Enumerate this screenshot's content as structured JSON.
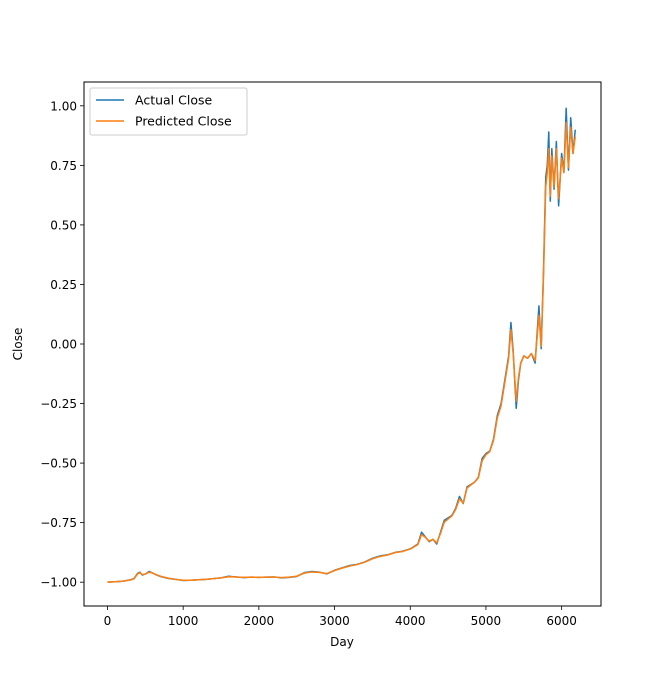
{
  "chart_data": {
    "type": "line",
    "title": "",
    "xlabel": "Day",
    "ylabel": "Close",
    "xlim": [
      -310,
      6520
    ],
    "ylim": [
      -1.1,
      1.1
    ],
    "xticks": [
      0,
      1000,
      2000,
      3000,
      4000,
      5000,
      6000
    ],
    "xtick_labels": [
      "0",
      "1000",
      "2000",
      "3000",
      "4000",
      "5000",
      "6000"
    ],
    "yticks": [
      1.0,
      0.75,
      0.5,
      0.25,
      0.0,
      -0.25,
      -0.5,
      -0.75,
      -1.0
    ],
    "ytick_labels": [
      "1.00",
      "0.75",
      "0.50",
      "0.25",
      "0.00",
      "−0.25",
      "−0.50",
      "−0.75",
      "−1.00"
    ],
    "grid": false,
    "legend_position": "top-left",
    "x": [
      0,
      100,
      200,
      300,
      350,
      400,
      430,
      460,
      500,
      550,
      600,
      650,
      700,
      800,
      900,
      1000,
      1100,
      1200,
      1300,
      1400,
      1500,
      1600,
      1700,
      1800,
      1900,
      2000,
      2100,
      2200,
      2300,
      2400,
      2500,
      2600,
      2700,
      2800,
      2900,
      3000,
      3100,
      3200,
      3300,
      3400,
      3500,
      3600,
      3700,
      3800,
      3900,
      4000,
      4100,
      4150,
      4200,
      4250,
      4300,
      4350,
      4400,
      4450,
      4500,
      4550,
      4600,
      4650,
      4700,
      4750,
      4800,
      4850,
      4900,
      4950,
      5000,
      5050,
      5100,
      5150,
      5200,
      5250,
      5300,
      5330,
      5360,
      5400,
      5430,
      5460,
      5500,
      5550,
      5600,
      5650,
      5700,
      5730,
      5760,
      5790,
      5810,
      5830,
      5850,
      5870,
      5900,
      5930,
      5960,
      6000,
      6030,
      6060,
      6090,
      6120,
      6150,
      6180
    ],
    "series": [
      {
        "name": "Actual Close",
        "color": "#1f77b4",
        "values": [
          -1.0,
          -0.998,
          -0.996,
          -0.99,
          -0.985,
          -0.962,
          -0.958,
          -0.97,
          -0.966,
          -0.955,
          -0.962,
          -0.97,
          -0.976,
          -0.984,
          -0.988,
          -0.993,
          -0.992,
          -0.99,
          -0.988,
          -0.985,
          -0.982,
          -0.975,
          -0.978,
          -0.981,
          -0.979,
          -0.98,
          -0.979,
          -0.978,
          -0.982,
          -0.98,
          -0.976,
          -0.96,
          -0.955,
          -0.958,
          -0.965,
          -0.95,
          -0.94,
          -0.93,
          -0.925,
          -0.915,
          -0.9,
          -0.89,
          -0.885,
          -0.875,
          -0.87,
          -0.86,
          -0.84,
          -0.79,
          -0.81,
          -0.83,
          -0.82,
          -0.84,
          -0.79,
          -0.74,
          -0.73,
          -0.72,
          -0.69,
          -0.64,
          -0.67,
          -0.6,
          -0.59,
          -0.58,
          -0.56,
          -0.48,
          -0.46,
          -0.45,
          -0.4,
          -0.3,
          -0.25,
          -0.15,
          -0.05,
          0.09,
          -0.03,
          -0.27,
          -0.15,
          -0.08,
          -0.05,
          -0.06,
          -0.04,
          -0.08,
          0.16,
          -0.02,
          0.3,
          0.7,
          0.75,
          0.89,
          0.6,
          0.82,
          0.65,
          0.85,
          0.58,
          0.8,
          0.72,
          0.99,
          0.73,
          0.95,
          0.8,
          0.9
        ]
      },
      {
        "name": "Predicted Close",
        "color": "#ff7f0e",
        "values": [
          -1.0,
          -0.998,
          -0.996,
          -0.991,
          -0.986,
          -0.965,
          -0.96,
          -0.968,
          -0.966,
          -0.958,
          -0.962,
          -0.969,
          -0.975,
          -0.983,
          -0.988,
          -0.992,
          -0.992,
          -0.99,
          -0.988,
          -0.985,
          -0.982,
          -0.977,
          -0.978,
          -0.98,
          -0.979,
          -0.98,
          -0.979,
          -0.978,
          -0.981,
          -0.979,
          -0.975,
          -0.962,
          -0.957,
          -0.959,
          -0.964,
          -0.951,
          -0.941,
          -0.932,
          -0.926,
          -0.916,
          -0.902,
          -0.892,
          -0.886,
          -0.876,
          -0.871,
          -0.861,
          -0.842,
          -0.8,
          -0.812,
          -0.828,
          -0.82,
          -0.835,
          -0.795,
          -0.748,
          -0.735,
          -0.722,
          -0.695,
          -0.65,
          -0.668,
          -0.605,
          -0.592,
          -0.58,
          -0.562,
          -0.49,
          -0.465,
          -0.452,
          -0.405,
          -0.31,
          -0.26,
          -0.16,
          -0.06,
          0.06,
          -0.04,
          -0.24,
          -0.14,
          -0.08,
          -0.05,
          -0.06,
          -0.04,
          -0.07,
          0.12,
          -0.01,
          0.28,
          0.66,
          0.72,
          0.82,
          0.62,
          0.79,
          0.66,
          0.82,
          0.61,
          0.78,
          0.72,
          0.93,
          0.74,
          0.91,
          0.8,
          0.87
        ]
      }
    ]
  }
}
